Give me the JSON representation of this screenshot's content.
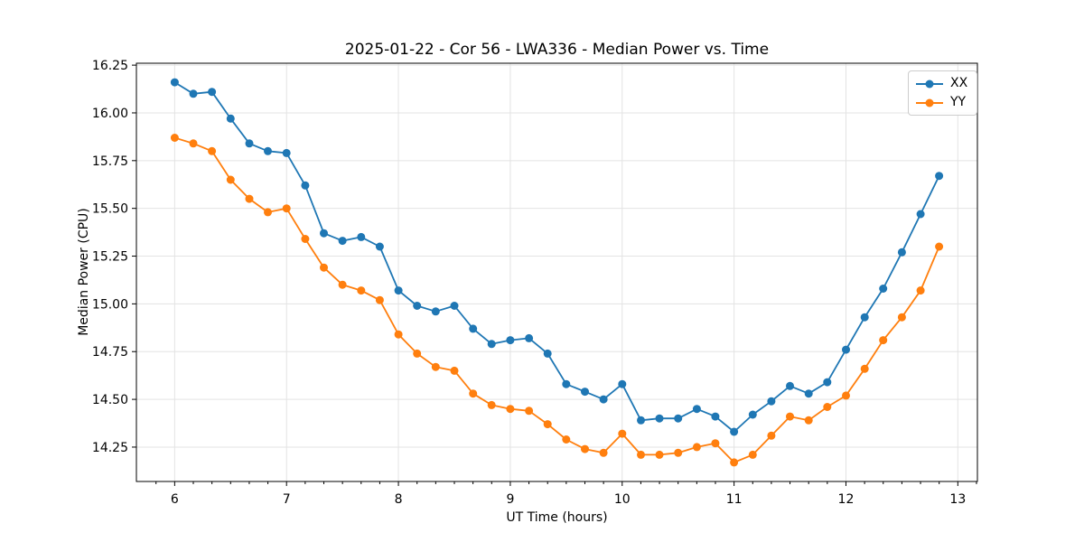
{
  "figure": {
    "title": "2025-01-22 - Cor 56 - LWA336 - Median Power vs. Time"
  },
  "chart_data": {
    "type": "line",
    "title": "2025-01-22 - Cor 56 - LWA336 - Median Power vs. Time",
    "xlabel": "UT Time (hours)",
    "ylabel": "Median Power (CPU)",
    "x": [
      6.0,
      6.167,
      6.333,
      6.5,
      6.667,
      6.833,
      7.0,
      7.167,
      7.333,
      7.5,
      7.667,
      7.833,
      8.0,
      8.167,
      8.333,
      8.5,
      8.667,
      8.833,
      9.0,
      9.167,
      9.333,
      9.5,
      9.667,
      9.833,
      10.0,
      10.167,
      10.333,
      10.5,
      10.667,
      10.833,
      11.0,
      11.167,
      11.333,
      11.5,
      11.667,
      11.833,
      12.0,
      12.167,
      12.333,
      12.5,
      12.667,
      12.833
    ],
    "series": [
      {
        "name": "XX",
        "color": "#1f77b4",
        "values": [
          16.16,
          16.1,
          16.11,
          15.97,
          15.84,
          15.8,
          15.79,
          15.62,
          15.37,
          15.33,
          15.35,
          15.3,
          15.07,
          14.99,
          14.96,
          14.99,
          14.87,
          14.79,
          14.81,
          14.82,
          14.74,
          14.58,
          14.54,
          14.5,
          14.58,
          14.39,
          14.4,
          14.4,
          14.45,
          14.41,
          14.33,
          14.42,
          14.49,
          14.57,
          14.53,
          14.59,
          14.76,
          14.93,
          15.08,
          15.27,
          15.47,
          15.67
        ]
      },
      {
        "name": "YY",
        "color": "#ff7f0e",
        "values": [
          15.87,
          15.84,
          15.8,
          15.65,
          15.55,
          15.48,
          15.5,
          15.34,
          15.19,
          15.1,
          15.07,
          15.02,
          14.84,
          14.74,
          14.67,
          14.65,
          14.53,
          14.47,
          14.45,
          14.44,
          14.37,
          14.29,
          14.24,
          14.22,
          14.32,
          14.21,
          14.21,
          14.22,
          14.25,
          14.27,
          14.17,
          14.21,
          14.31,
          14.41,
          14.39,
          14.46,
          14.52,
          14.66,
          14.81,
          14.93,
          15.07,
          15.3
        ]
      }
    ],
    "xlim": [
      5.658,
      13.175
    ],
    "ylim": [
      14.07,
      16.26
    ],
    "xticks": [
      6,
      7,
      8,
      9,
      10,
      11,
      12,
      13
    ],
    "xtick_labels": [
      "6",
      "7",
      "8",
      "9",
      "10",
      "11",
      "12",
      "13"
    ],
    "x_minor_tick_step": 0.1667,
    "yticks": [
      14.25,
      14.5,
      14.75,
      15.0,
      15.25,
      15.5,
      15.75,
      16.0,
      16.25
    ],
    "ytick_labels": [
      "14.25",
      "14.50",
      "14.75",
      "15.00",
      "15.25",
      "15.50",
      "15.75",
      "16.00",
      "16.25"
    ],
    "grid": true,
    "grid_color": "#e3e3e3",
    "marker": "circle",
    "legend_position": "upper right"
  },
  "legend": {
    "items": [
      {
        "label": "XX",
        "color": "#1f77b4"
      },
      {
        "label": "YY",
        "color": "#ff7f0e"
      }
    ]
  }
}
